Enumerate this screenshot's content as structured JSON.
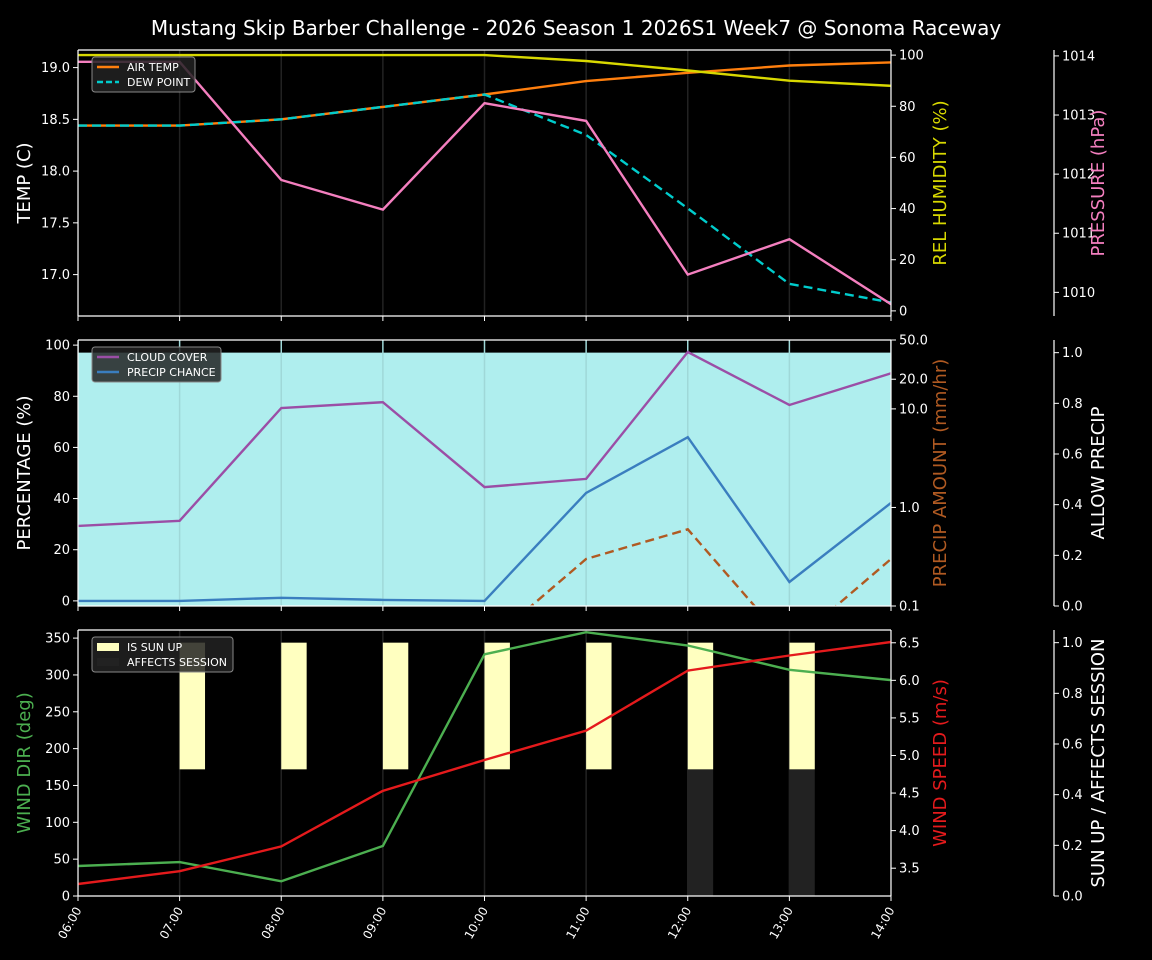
{
  "title": "Mustang Skip Barber Challenge - 2026 Season 1 2026S1 Week7 @ Sonoma Raceway",
  "chart_data": [
    {
      "type": "line",
      "panel": "top",
      "x": [
        "06:00",
        "07:00",
        "08:00",
        "09:00",
        "10:00",
        "11:00",
        "12:00",
        "13:00",
        "14:00"
      ],
      "grid": "vertical",
      "axes": {
        "left": {
          "label": "TEMP (C)",
          "ylim": [
            16.6,
            19.17
          ],
          "ticks": [
            "17.0",
            "17.5",
            "18.0",
            "18.5",
            "19.0"
          ],
          "color": "#ffffff"
        },
        "right": {
          "label": "REL HUMIDITY (%)",
          "ylim": [
            -2,
            102
          ],
          "ticks": [
            "0",
            "20",
            "40",
            "60",
            "80",
            "100"
          ],
          "color": "#d8d800"
        },
        "right2": {
          "label": "PRESSURE (hPa)",
          "ylim": [
            1009.6,
            1014.1
          ],
          "ticks": [
            "1010",
            "1011",
            "1012",
            "1013",
            "1014"
          ],
          "color": "#f47fbf"
        }
      },
      "legend": {
        "placement": "top-left",
        "entries": [
          "AIR TEMP",
          "DEW POINT"
        ]
      },
      "series": [
        {
          "name": "AIR TEMP",
          "axis": "left",
          "color": "#ff7f0e",
          "dash": false,
          "values": [
            18.44,
            18.44,
            18.5,
            18.62,
            18.74,
            18.87,
            18.95,
            19.02,
            19.05
          ]
        },
        {
          "name": "DEW POINT",
          "axis": "left",
          "color": "#00cccc",
          "dash": true,
          "values": [
            18.44,
            18.44,
            18.5,
            18.62,
            18.74,
            18.35,
            17.64,
            16.91,
            16.73
          ]
        },
        {
          "axis": "right",
          "color": "#d8d800",
          "dash": false,
          "values": [
            100,
            100,
            100,
            100,
            100,
            97.7,
            94,
            90,
            88
          ]
        },
        {
          "axis": "right2",
          "color": "#f47fbf",
          "dash": false,
          "values": [
            1013.9,
            1013.9,
            1011.9,
            1011.4,
            1013.2,
            1012.9,
            1010.3,
            1010.9,
            1009.8
          ]
        }
      ]
    },
    {
      "type": "line",
      "panel": "middle",
      "x": [
        "06:00",
        "07:00",
        "08:00",
        "09:00",
        "10:00",
        "11:00",
        "12:00",
        "13:00",
        "14:00"
      ],
      "grid": "vertical",
      "axes": {
        "left": {
          "label": "PERCENTAGE (%)",
          "ylim": [
            -2,
            102
          ],
          "ticks": [
            "0",
            "20",
            "40",
            "60",
            "80",
            "100"
          ],
          "color": "#ffffff"
        },
        "right": {
          "label": "PRECIP AMOUNT (mm/hr)",
          "scale": "log",
          "ylim": [
            0.1,
            50
          ],
          "ticks": [
            "0.1",
            "1.0",
            "10.0",
            "20.0",
            "50.0"
          ],
          "color": "#b05a22"
        },
        "right2": {
          "label": "ALLOW PRECIP",
          "ylim": [
            0,
            1.05
          ],
          "ticks": [
            "0.0",
            "0.2",
            "0.4",
            "0.6",
            "0.8",
            "1.0"
          ],
          "color": "#ffffff"
        }
      },
      "legend": {
        "placement": "top-left",
        "entries": [
          "CLOUD COVER",
          "PRECIP CHANCE"
        ]
      },
      "allow_precip": {
        "axis": "right2",
        "color": "#afeeee",
        "values": [
          1,
          1,
          1,
          1,
          1,
          1,
          1,
          1,
          1
        ]
      },
      "series": [
        {
          "name": "CLOUD COVER",
          "axis": "left",
          "color": "#9b4ea6",
          "dash": false,
          "values": [
            29.3,
            31.3,
            75.4,
            77.7,
            44.5,
            47.7,
            97.3,
            76.6,
            89
          ]
        },
        {
          "name": "PRECIP CHANCE",
          "axis": "left",
          "color": "#3a7ebf",
          "dash": false,
          "values": [
            0,
            0,
            1.2,
            0.4,
            0,
            42.2,
            64,
            7.4,
            38.3
          ]
        },
        {
          "axis": "right",
          "color": "#b05a22",
          "dash": true,
          "values": [
            0,
            0,
            0,
            0,
            0,
            0.3,
            0.6,
            0,
            0.3
          ]
        }
      ]
    },
    {
      "type": "line",
      "panel": "bottom",
      "x": [
        "06:00",
        "07:00",
        "08:00",
        "09:00",
        "10:00",
        "11:00",
        "12:00",
        "13:00",
        "14:00"
      ],
      "grid": "vertical",
      "axes": {
        "left": {
          "label": "WIND DIR (deg)",
          "ylim": [
            0,
            361
          ],
          "ticks": [
            "0",
            "50",
            "100",
            "150",
            "200",
            "250",
            "300",
            "350"
          ],
          "color": "#4caf50"
        },
        "right": {
          "label": "WIND SPEED (m/s)",
          "ylim": [
            3.13,
            6.67
          ],
          "ticks": [
            "3.5",
            "4.0",
            "4.5",
            "5.0",
            "5.5",
            "6.0",
            "6.5"
          ],
          "color": "#e41a1c"
        },
        "right2": {
          "label": "SUN UP / AFFECTS SESSION",
          "ylim": [
            0,
            1.05
          ],
          "ticks": [
            "0.0",
            "0.2",
            "0.4",
            "0.6",
            "0.8",
            "1.0"
          ],
          "color": "#ffffff"
        }
      },
      "legend": {
        "placement": "top-left",
        "entries": [
          "IS SUN UP",
          "AFFECTS SESSION"
        ]
      },
      "bars": [
        {
          "name": "IS SUN UP",
          "color": "#ffffc0",
          "values": [
            0,
            1,
            1,
            1,
            1,
            1,
            1,
            1,
            0
          ]
        },
        {
          "name": "AFFECTS SESSION",
          "color": "#222222",
          "values": [
            0,
            0,
            0,
            0,
            0,
            0,
            1,
            1,
            0
          ]
        }
      ],
      "series": [
        {
          "axis": "left",
          "color": "#4caf50",
          "dash": false,
          "values": [
            40.7,
            46,
            20,
            68,
            328,
            358,
            340,
            307,
            293
          ]
        },
        {
          "axis": "right",
          "color": "#e41a1c",
          "dash": false,
          "values": [
            3.29,
            3.46,
            3.79,
            4.53,
            4.94,
            5.33,
            6.13,
            6.33,
            6.51
          ]
        }
      ]
    }
  ]
}
